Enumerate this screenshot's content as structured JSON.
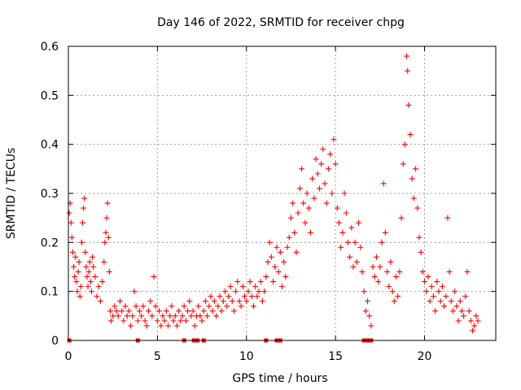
{
  "chart_data": {
    "type": "scatter",
    "title": "Day 146 of 2022, SRMTID for receiver chpg",
    "xlabel": "GPS time / hours",
    "ylabel": "SRMTID / TECUs",
    "xlim": [
      0,
      24
    ],
    "ylim": [
      0,
      0.6
    ],
    "xticks": [
      0,
      5,
      10,
      15,
      20
    ],
    "xtick_labels": [
      "0",
      "5",
      "10",
      "15",
      "20"
    ],
    "yticks": [
      0,
      0.1,
      0.2,
      0.3,
      0.4,
      0.5,
      0.6
    ],
    "ytick_labels": [
      "0",
      "0.1",
      "0.2",
      "0.3",
      "0.4",
      "0.5",
      "0.6"
    ],
    "grid": true,
    "marker": "plus",
    "color": "#ff0000",
    "series": [
      {
        "name": "SRMTID",
        "points": [
          [
            0.05,
            0.26
          ],
          [
            0.1,
            0.28
          ],
          [
            0.15,
            0.24
          ],
          [
            0.2,
            0.21
          ],
          [
            0.25,
            0.18
          ],
          [
            0.3,
            0.15
          ],
          [
            0.35,
            0.13
          ],
          [
            0.4,
            0.17
          ],
          [
            0.45,
            0.12
          ],
          [
            0.5,
            0.1
          ],
          [
            0.55,
            0.14
          ],
          [
            0.6,
            0.16
          ],
          [
            0.65,
            0.09
          ],
          [
            0.7,
            0.11
          ],
          [
            0.75,
            0.2
          ],
          [
            0.8,
            0.24
          ],
          [
            0.85,
            0.27
          ],
          [
            0.9,
            0.29
          ],
          [
            0.95,
            0.18
          ],
          [
            1.0,
            0.15
          ],
          [
            1.05,
            0.13
          ],
          [
            1.1,
            0.11
          ],
          [
            1.15,
            0.14
          ],
          [
            1.2,
            0.16
          ],
          [
            1.25,
            0.12
          ],
          [
            1.3,
            0.1
          ],
          [
            1.35,
            0.17
          ],
          [
            1.4,
            0.15
          ],
          [
            1.5,
            0.13
          ],
          [
            1.6,
            0.09
          ],
          [
            1.7,
            0.11
          ],
          [
            1.8,
            0.08
          ],
          [
            1.9,
            0.12
          ],
          [
            2.0,
            0.16
          ],
          [
            2.05,
            0.2
          ],
          [
            2.1,
            0.22
          ],
          [
            2.15,
            0.25
          ],
          [
            2.2,
            0.28
          ],
          [
            2.25,
            0.21
          ],
          [
            2.3,
            0.14
          ],
          [
            2.35,
            0.06
          ],
          [
            2.4,
            0.04
          ],
          [
            2.5,
            0.05
          ],
          [
            2.6,
            0.07
          ],
          [
            2.7,
            0.06
          ],
          [
            2.8,
            0.05
          ],
          [
            2.9,
            0.08
          ],
          [
            3.0,
            0.06
          ],
          [
            3.1,
            0.04
          ],
          [
            3.2,
            0.07
          ],
          [
            3.3,
            0.05
          ],
          [
            3.4,
            0.06
          ],
          [
            3.5,
            0.03
          ],
          [
            3.6,
            0.05
          ],
          [
            3.7,
            0.1
          ],
          [
            3.8,
            0.07
          ],
          [
            3.9,
            0.04
          ],
          [
            4.0,
            0.06
          ],
          [
            4.1,
            0.05
          ],
          [
            4.2,
            0.07
          ],
          [
            4.3,
            0.04
          ],
          [
            4.4,
            0.03
          ],
          [
            4.5,
            0.06
          ],
          [
            4.6,
            0.08
          ],
          [
            4.7,
            0.05
          ],
          [
            4.8,
            0.13
          ],
          [
            4.9,
            0.07
          ],
          [
            5.0,
            0.04
          ],
          [
            5.1,
            0.06
          ],
          [
            5.2,
            0.03
          ],
          [
            5.3,
            0.05
          ],
          [
            5.4,
            0.04
          ],
          [
            5.5,
            0.06
          ],
          [
            5.6,
            0.03
          ],
          [
            5.7,
            0.05
          ],
          [
            5.8,
            0.07
          ],
          [
            5.9,
            0.04
          ],
          [
            6.0,
            0.05
          ],
          [
            6.1,
            0.03
          ],
          [
            6.2,
            0.06
          ],
          [
            6.3,
            0.04
          ],
          [
            6.4,
            0.05
          ],
          [
            6.5,
            0.07
          ],
          [
            6.6,
            0.04
          ],
          [
            6.7,
            0.06
          ],
          [
            6.8,
            0.08
          ],
          [
            6.9,
            0.05
          ],
          [
            7.0,
            0.06
          ],
          [
            7.1,
            0.03
          ],
          [
            7.2,
            0.05
          ],
          [
            7.3,
            0.07
          ],
          [
            7.4,
            0.05
          ],
          [
            7.5,
            0.04
          ],
          [
            7.6,
            0.06
          ],
          [
            7.7,
            0.08
          ],
          [
            7.8,
            0.05
          ],
          [
            7.9,
            0.07
          ],
          [
            8.0,
            0.09
          ],
          [
            8.1,
            0.06
          ],
          [
            8.2,
            0.08
          ],
          [
            8.3,
            0.05
          ],
          [
            8.4,
            0.07
          ],
          [
            8.5,
            0.09
          ],
          [
            8.6,
            0.06
          ],
          [
            8.7,
            0.08
          ],
          [
            8.8,
            0.1
          ],
          [
            8.9,
            0.07
          ],
          [
            9.0,
            0.09
          ],
          [
            9.1,
            0.11
          ],
          [
            9.2,
            0.08
          ],
          [
            9.3,
            0.06
          ],
          [
            9.4,
            0.1
          ],
          [
            9.5,
            0.12
          ],
          [
            9.6,
            0.08
          ],
          [
            9.7,
            0.07
          ],
          [
            9.8,
            0.11
          ],
          [
            9.9,
            0.09
          ],
          [
            10.0,
            0.08
          ],
          [
            10.1,
            0.1
          ],
          [
            10.2,
            0.12
          ],
          [
            10.3,
            0.09
          ],
          [
            10.4,
            0.07
          ],
          [
            10.5,
            0.11
          ],
          [
            10.6,
            0.09
          ],
          [
            10.7,
            0.1
          ],
          [
            10.8,
            0.12
          ],
          [
            10.9,
            0.08
          ],
          [
            11.0,
            0.1
          ],
          [
            11.1,
            0.13
          ],
          [
            11.2,
            0.16
          ],
          [
            11.3,
            0.2
          ],
          [
            11.4,
            0.17
          ],
          [
            11.5,
            0.12
          ],
          [
            11.6,
            0.15
          ],
          [
            11.7,
            0.19
          ],
          [
            11.8,
            0.14
          ],
          [
            11.9,
            0.18
          ],
          [
            12.0,
            0.11
          ],
          [
            12.1,
            0.16
          ],
          [
            12.2,
            0.13
          ],
          [
            12.3,
            0.19
          ],
          [
            12.4,
            0.21
          ],
          [
            12.5,
            0.25
          ],
          [
            12.6,
            0.28
          ],
          [
            12.7,
            0.22
          ],
          [
            12.8,
            0.18
          ],
          [
            12.9,
            0.26
          ],
          [
            13.0,
            0.31
          ],
          [
            13.1,
            0.35
          ],
          [
            13.2,
            0.28
          ],
          [
            13.3,
            0.24
          ],
          [
            13.4,
            0.3
          ],
          [
            13.5,
            0.27
          ],
          [
            13.6,
            0.22
          ],
          [
            13.7,
            0.33
          ],
          [
            13.8,
            0.29
          ],
          [
            13.9,
            0.37
          ],
          [
            14.0,
            0.34
          ],
          [
            14.1,
            0.31
          ],
          [
            14.2,
            0.36
          ],
          [
            14.3,
            0.39
          ],
          [
            14.4,
            0.32
          ],
          [
            14.5,
            0.28
          ],
          [
            14.6,
            0.35
          ],
          [
            14.7,
            0.38
          ],
          [
            14.8,
            0.3
          ],
          [
            14.9,
            0.41
          ],
          [
            15.0,
            0.36
          ],
          [
            15.1,
            0.27
          ],
          [
            15.2,
            0.24
          ],
          [
            15.3,
            0.19
          ],
          [
            15.4,
            0.22
          ],
          [
            15.5,
            0.3
          ],
          [
            15.6,
            0.26
          ],
          [
            15.7,
            0.2
          ],
          [
            15.8,
            0.17
          ],
          [
            15.9,
            0.23
          ],
          [
            16.0,
            0.15
          ],
          [
            16.1,
            0.2
          ],
          [
            16.2,
            0.16
          ],
          [
            16.3,
            0.24
          ],
          [
            16.4,
            0.19
          ],
          [
            16.5,
            0.14
          ],
          [
            16.6,
            0.1
          ],
          [
            16.7,
            0.06
          ],
          [
            16.8,
            0.08
          ],
          [
            16.9,
            0.05
          ],
          [
            17.0,
            0.03
          ],
          [
            17.1,
            0.15
          ],
          [
            17.2,
            0.13
          ],
          [
            17.3,
            0.17
          ],
          [
            17.4,
            0.12
          ],
          [
            17.5,
            0.15
          ],
          [
            17.6,
            0.2
          ],
          [
            17.7,
            0.32
          ],
          [
            17.8,
            0.22
          ],
          [
            17.9,
            0.14
          ],
          [
            18.0,
            0.11
          ],
          [
            18.1,
            0.16
          ],
          [
            18.2,
            0.1
          ],
          [
            18.3,
            0.08
          ],
          [
            18.4,
            0.13
          ],
          [
            18.5,
            0.09
          ],
          [
            18.6,
            0.14
          ],
          [
            18.7,
            0.25
          ],
          [
            18.8,
            0.36
          ],
          [
            18.9,
            0.4
          ],
          [
            19.0,
            0.58
          ],
          [
            19.05,
            0.55
          ],
          [
            19.1,
            0.48
          ],
          [
            19.2,
            0.42
          ],
          [
            19.3,
            0.33
          ],
          [
            19.4,
            0.29
          ],
          [
            19.5,
            0.35
          ],
          [
            19.6,
            0.27
          ],
          [
            19.7,
            0.21
          ],
          [
            19.8,
            0.18
          ],
          [
            19.9,
            0.14
          ],
          [
            20.0,
            0.12
          ],
          [
            20.1,
            0.1
          ],
          [
            20.2,
            0.13
          ],
          [
            20.3,
            0.08
          ],
          [
            20.4,
            0.11
          ],
          [
            20.5,
            0.09
          ],
          [
            20.6,
            0.06
          ],
          [
            20.7,
            0.12
          ],
          [
            20.8,
            0.1
          ],
          [
            20.9,
            0.08
          ],
          [
            21.0,
            0.11
          ],
          [
            21.1,
            0.07
          ],
          [
            21.2,
            0.09
          ],
          [
            21.3,
            0.25
          ],
          [
            21.4,
            0.14
          ],
          [
            21.5,
            0.08
          ],
          [
            21.6,
            0.06
          ],
          [
            21.7,
            0.1
          ],
          [
            21.8,
            0.07
          ],
          [
            21.9,
            0.04
          ],
          [
            22.0,
            0.08
          ],
          [
            22.1,
            0.06
          ],
          [
            22.2,
            0.05
          ],
          [
            22.3,
            0.09
          ],
          [
            22.4,
            0.14
          ],
          [
            22.5,
            0.06
          ],
          [
            22.6,
            0.04
          ],
          [
            22.7,
            0.02
          ],
          [
            22.8,
            0.03
          ],
          [
            22.9,
            0.05
          ],
          [
            23.0,
            0.04
          ]
        ]
      }
    ],
    "zero_markers": [
      0.05,
      3.9,
      6.5,
      7.05,
      7.25,
      7.6,
      11.1,
      11.7,
      11.9,
      16.6,
      16.8,
      17.0
    ]
  }
}
